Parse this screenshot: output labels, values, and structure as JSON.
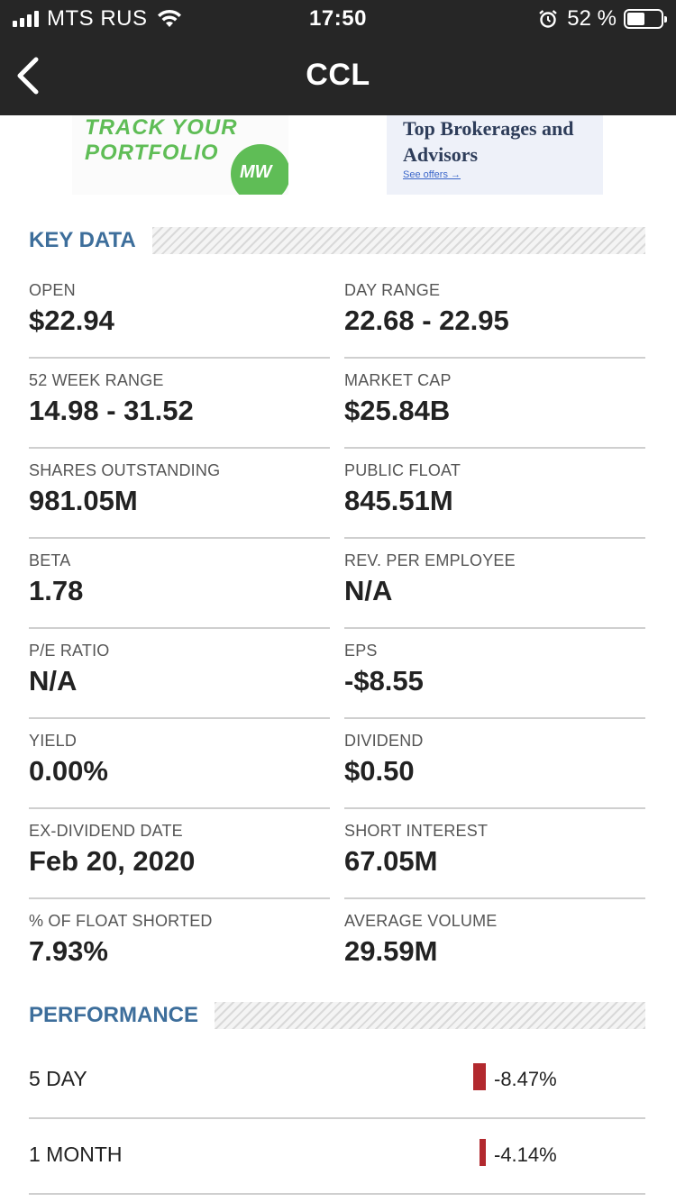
{
  "status_bar": {
    "carrier": "MTS RUS",
    "time": "17:50",
    "battery_percent": "52 %",
    "battery_level": 0.52
  },
  "nav": {
    "title": "CCL"
  },
  "ads": {
    "left_text_line1": "TRACK YOUR",
    "left_text_line2": "PORTFOLIO",
    "left_badge": "MW",
    "right_title": "Top Brokerages and Advisors",
    "right_link": "See offers →"
  },
  "key_data": {
    "heading": "KEY DATA",
    "items": [
      {
        "label": "OPEN",
        "value": "$22.94"
      },
      {
        "label": "DAY RANGE",
        "value": "22.68 - 22.95"
      },
      {
        "label": "52 WEEK RANGE",
        "value": "14.98 - 31.52"
      },
      {
        "label": "MARKET CAP",
        "value": "$25.84B"
      },
      {
        "label": "SHARES OUTSTANDING",
        "value": "981.05M"
      },
      {
        "label": "PUBLIC FLOAT",
        "value": "845.51M"
      },
      {
        "label": "BETA",
        "value": "1.78"
      },
      {
        "label": "REV. PER EMPLOYEE",
        "value": "N/A"
      },
      {
        "label": "P/E RATIO",
        "value": "N/A"
      },
      {
        "label": "EPS",
        "value": "-$8.55"
      },
      {
        "label": "YIELD",
        "value": "0.00%"
      },
      {
        "label": "DIVIDEND",
        "value": "$0.50"
      },
      {
        "label": "EX-DIVIDEND DATE",
        "value": "Feb 20, 2020"
      },
      {
        "label": "SHORT INTEREST",
        "value": "67.05M"
      },
      {
        "label": "% OF FLOAT SHORTED",
        "value": "7.93%"
      },
      {
        "label": "AVERAGE VOLUME",
        "value": "29.59M"
      }
    ]
  },
  "performance": {
    "heading": "PERFORMANCE",
    "bar_color": "#b2292e",
    "rows": [
      {
        "label": "5 DAY",
        "value": "-8.47%",
        "change": -8.47
      },
      {
        "label": "1 MONTH",
        "value": "-4.14%",
        "change": -4.14
      }
    ]
  }
}
